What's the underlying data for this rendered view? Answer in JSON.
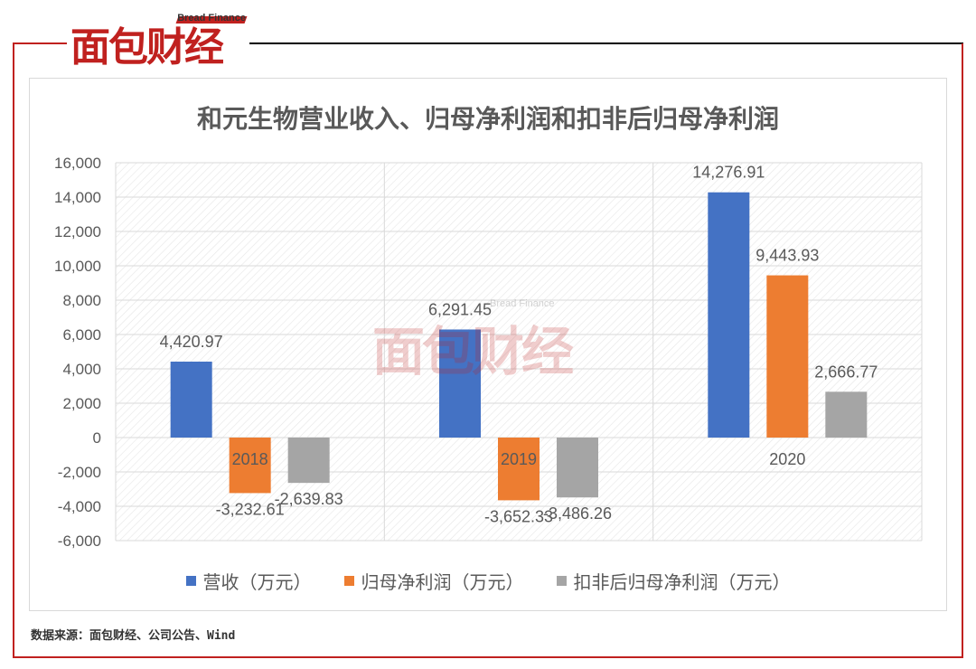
{
  "logo": {
    "cn": "面包财经",
    "en": "Bread Finance"
  },
  "watermark": {
    "cn": "面包财经",
    "en": "Bread Finance"
  },
  "colors": {
    "brand": "#c0211f",
    "revenue": "#4472c4",
    "net_profit": "#ed7d31",
    "deducted_profit": "#a5a5a5"
  },
  "source": "数据来源：面包财经、公司公告、Wind",
  "chart_data": {
    "type": "bar",
    "title": "和元生物营业收入、归母净利润和扣非后归母净利润",
    "categories": [
      "2018",
      "2019",
      "2020"
    ],
    "series": [
      {
        "name": "营收（万元）",
        "values": [
          4420.97,
          6291.45,
          14276.91
        ],
        "labels": [
          "4,420.97",
          "6,291.45",
          "14,276.91"
        ]
      },
      {
        "name": "归母净利润（万元）",
        "values": [
          -3232.61,
          -3652.33,
          9443.93
        ],
        "labels": [
          "-3,232.61",
          "-3,652.33",
          "9,443.93"
        ]
      },
      {
        "name": "扣非后归母净利润（万元）",
        "values": [
          -2639.83,
          -3486.26,
          2666.77
        ],
        "labels": [
          "-2,639.83",
          "-3,486.26",
          "2,666.77"
        ]
      }
    ],
    "yticks": [
      "16,000",
      "14,000",
      "12,000",
      "10,000",
      "8,000",
      "6,000",
      "4,000",
      "2,000",
      "0",
      "-2,000",
      "-4,000",
      "-6,000"
    ],
    "ylim": [
      -6000,
      16000
    ],
    "grid": true,
    "legend": "bottom"
  }
}
